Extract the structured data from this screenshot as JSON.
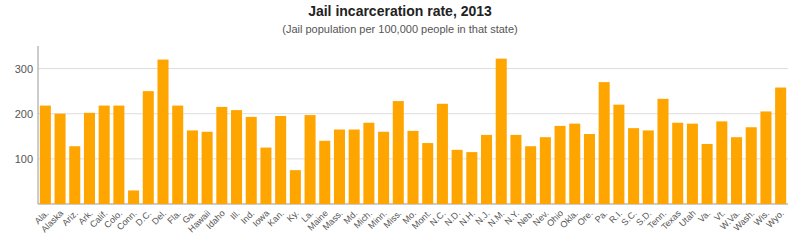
{
  "chart_data": {
    "type": "bar",
    "title": "Jail incarceration rate, 2013",
    "subtitle": "(Jail population per 100,000 people in that state)",
    "categories": [
      "Ala.",
      "Alaska",
      "Ariz.",
      "Ark.",
      "Calif.",
      "Colo.",
      "Conn.",
      "D.C.",
      "Del.",
      "Fla.",
      "Ga.",
      "Hawaii",
      "Idaho",
      "Ill.",
      "Ind.",
      "Iowa",
      "Kan.",
      "Ky.",
      "La.",
      "Maine",
      "Mass.",
      "Md.",
      "Mich.",
      "Minn.",
      "Miss.",
      "Mo.",
      "Mont.",
      "N.C.",
      "N.D.",
      "N.H.",
      "N.J.",
      "N.M.",
      "N.Y.",
      "Neb.",
      "Nev.",
      "Ohio",
      "Okla.",
      "Ore.",
      "Pa.",
      "R.I.",
      "S.C.",
      "S.D.",
      "Tenn.",
      "Texas",
      "Utah",
      "Va.",
      "Vt.",
      "W.Va.",
      "Wash.",
      "Wis.",
      "Wyo."
    ],
    "values": [
      218,
      200,
      128,
      202,
      218,
      218,
      30,
      250,
      320,
      218,
      163,
      160,
      215,
      208,
      193,
      125,
      195,
      75,
      197,
      140,
      165,
      165,
      180,
      160,
      228,
      162,
      135,
      222,
      120,
      115,
      153,
      322,
      153,
      128,
      148,
      173,
      178,
      155,
      270,
      220,
      168,
      163,
      233,
      180,
      178,
      133,
      183,
      148,
      170,
      205,
      258
    ],
    "color": "#FFA500",
    "ylim": [
      0,
      350
    ],
    "yticks": [
      100,
      200,
      300
    ],
    "grid": true
  }
}
